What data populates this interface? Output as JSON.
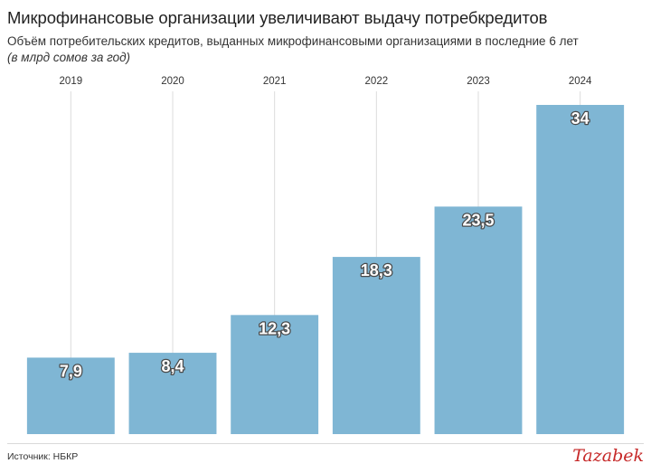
{
  "header": {
    "title": "Микрофинансовые организации увеличивают выдачу потребкредитов",
    "subtitle": "Объём потребительских кредитов, выданных микрофинансовыми организациями в последние 6 лет",
    "unit_note": "(в млрд сомов за год)"
  },
  "footer": {
    "source": "Источник: НБКР",
    "logo": "Tazabek"
  },
  "colors": {
    "bar": "#7fb6d4",
    "gridline": "#dcdcdc",
    "value_label_fill": "#ffffff",
    "value_label_stroke": "#4a4a4a",
    "logo": "#c62828"
  },
  "chart_data": {
    "type": "bar",
    "categories": [
      "2019",
      "2020",
      "2021",
      "2022",
      "2023",
      "2024"
    ],
    "values": [
      7.9,
      8.4,
      12.3,
      18.3,
      23.5,
      34
    ],
    "value_labels": [
      "7,9",
      "8,4",
      "12,3",
      "18,3",
      "23,5",
      "34"
    ],
    "ylim": [
      0,
      34
    ],
    "category_axis_position": "top",
    "grid": "vertical",
    "legend": "none"
  }
}
